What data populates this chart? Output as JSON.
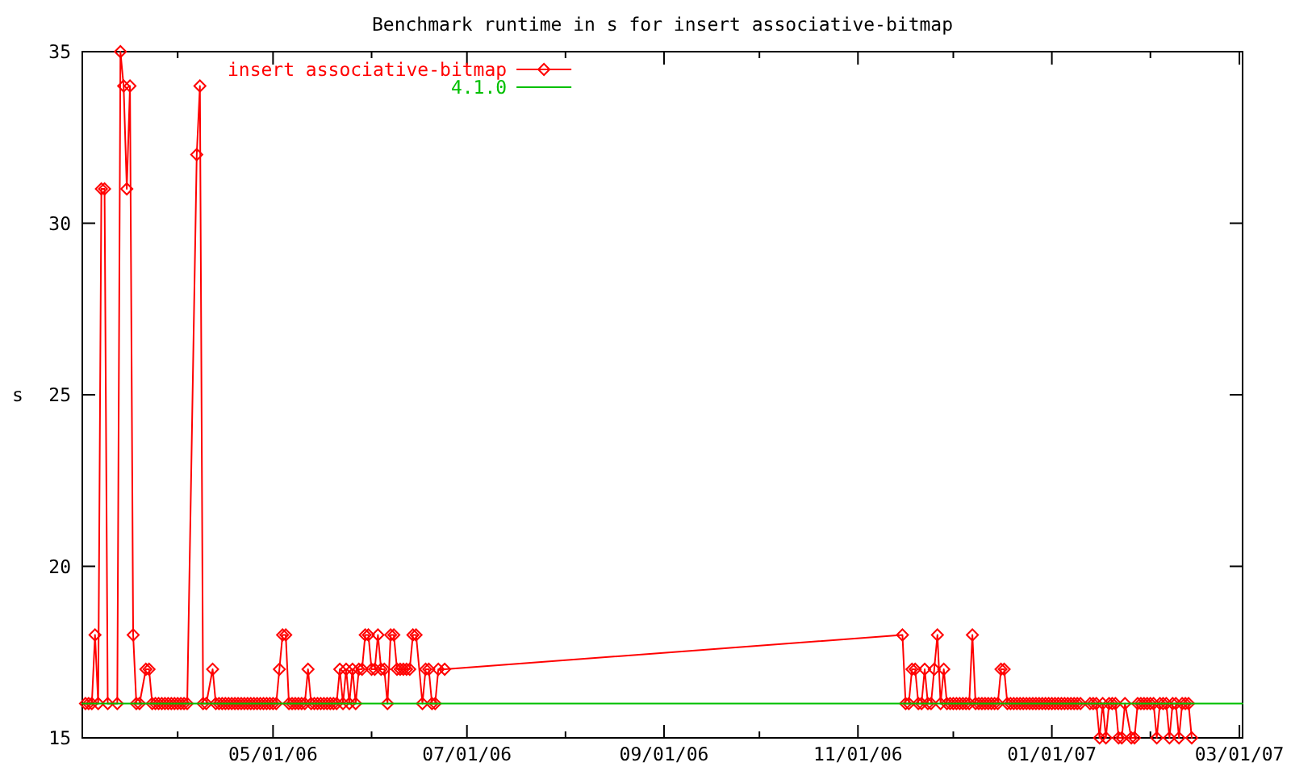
{
  "chart_data": {
    "type": "line",
    "title": "Benchmark runtime in s for insert associative-bitmap",
    "ylabel": "s",
    "xlim": [
      "2006-03-02",
      "2007-03-02"
    ],
    "xticks": [
      {
        "value": "2006-04-01",
        "label": null
      },
      {
        "value": "2006-05-01",
        "label": "05/01/06"
      },
      {
        "value": "2006-06-01",
        "label": null
      },
      {
        "value": "2006-07-01",
        "label": "07/01/06"
      },
      {
        "value": "2006-08-01",
        "label": null
      },
      {
        "value": "2006-09-01",
        "label": "09/01/06"
      },
      {
        "value": "2006-10-01",
        "label": null
      },
      {
        "value": "2006-11-01",
        "label": "11/01/06"
      },
      {
        "value": "2006-12-01",
        "label": null
      },
      {
        "value": "2007-01-01",
        "label": "01/01/07"
      },
      {
        "value": "2007-02-01",
        "label": null
      },
      {
        "value": "2007-03-01",
        "label": "03/01/07"
      }
    ],
    "ylim": [
      15,
      35
    ],
    "yticks": [
      15,
      20,
      25,
      30,
      35
    ],
    "legend": "top left",
    "series": [
      {
        "name": "insert associative-bitmap",
        "color": "#ff0000",
        "marker": "diamond",
        "x": [
          "2006-03-03",
          "2006-03-04",
          "2006-03-05",
          "2006-03-06",
          "2006-03-07",
          "2006-03-08",
          "2006-03-09",
          "2006-03-10",
          "2006-03-13",
          "2006-03-14",
          "2006-03-15",
          "2006-03-16",
          "2006-03-17",
          "2006-03-18",
          "2006-03-19",
          "2006-03-20",
          "2006-03-22",
          "2006-03-23",
          "2006-03-24",
          "2006-03-25",
          "2006-03-26",
          "2006-03-27",
          "2006-03-28",
          "2006-03-29",
          "2006-03-30",
          "2006-03-31",
          "2006-04-01",
          "2006-04-02",
          "2006-04-03",
          "2006-04-04",
          "2006-04-07",
          "2006-04-08",
          "2006-04-09",
          "2006-04-10",
          "2006-04-12",
          "2006-04-13",
          "2006-04-14",
          "2006-04-15",
          "2006-04-16",
          "2006-04-17",
          "2006-04-18",
          "2006-04-19",
          "2006-04-20",
          "2006-04-21",
          "2006-04-22",
          "2006-04-23",
          "2006-04-24",
          "2006-04-25",
          "2006-04-26",
          "2006-04-27",
          "2006-04-28",
          "2006-04-29",
          "2006-04-30",
          "2006-05-01",
          "2006-05-02",
          "2006-05-03",
          "2006-05-04",
          "2006-05-05",
          "2006-05-06",
          "2006-05-07",
          "2006-05-08",
          "2006-05-09",
          "2006-05-10",
          "2006-05-11",
          "2006-05-12",
          "2006-05-13",
          "2006-05-14",
          "2006-05-15",
          "2006-05-16",
          "2006-05-17",
          "2006-05-18",
          "2006-05-19",
          "2006-05-20",
          "2006-05-21",
          "2006-05-22",
          "2006-05-23",
          "2006-05-24",
          "2006-05-25",
          "2006-05-26",
          "2006-05-27",
          "2006-05-28",
          "2006-05-29",
          "2006-05-30",
          "2006-05-31",
          "2006-06-01",
          "2006-06-02",
          "2006-06-03",
          "2006-06-04",
          "2006-06-05",
          "2006-06-06",
          "2006-06-07",
          "2006-06-08",
          "2006-06-09",
          "2006-06-10",
          "2006-06-11",
          "2006-06-12",
          "2006-06-13",
          "2006-06-14",
          "2006-06-15",
          "2006-06-17",
          "2006-06-18",
          "2006-06-19",
          "2006-06-20",
          "2006-06-21",
          "2006-06-22",
          "2006-06-24",
          "2006-11-15",
          "2006-11-16",
          "2006-11-17",
          "2006-11-18",
          "2006-11-19",
          "2006-11-20",
          "2006-11-21",
          "2006-11-22",
          "2006-11-23",
          "2006-11-24",
          "2006-11-25",
          "2006-11-26",
          "2006-11-27",
          "2006-11-28",
          "2006-11-29",
          "2006-11-30",
          "2006-12-01",
          "2006-12-02",
          "2006-12-03",
          "2006-12-04",
          "2006-12-05",
          "2006-12-06",
          "2006-12-07",
          "2006-12-08",
          "2006-12-09",
          "2006-12-10",
          "2006-12-11",
          "2006-12-12",
          "2006-12-13",
          "2006-12-14",
          "2006-12-15",
          "2006-12-16",
          "2006-12-17",
          "2006-12-18",
          "2006-12-19",
          "2006-12-20",
          "2006-12-21",
          "2006-12-22",
          "2006-12-23",
          "2006-12-24",
          "2006-12-25",
          "2006-12-26",
          "2006-12-27",
          "2006-12-28",
          "2006-12-29",
          "2006-12-30",
          "2006-12-31",
          "2007-01-01",
          "2007-01-02",
          "2007-01-03",
          "2007-01-04",
          "2007-01-05",
          "2007-01-06",
          "2007-01-07",
          "2007-01-08",
          "2007-01-09",
          "2007-01-10",
          "2007-01-13",
          "2007-01-14",
          "2007-01-15",
          "2007-01-16",
          "2007-01-17",
          "2007-01-18",
          "2007-01-19",
          "2007-01-20",
          "2007-01-21",
          "2007-01-22",
          "2007-01-23",
          "2007-01-24",
          "2007-01-26",
          "2007-01-27",
          "2007-01-28",
          "2007-01-29",
          "2007-01-30",
          "2007-01-31",
          "2007-02-01",
          "2007-02-02",
          "2007-02-03",
          "2007-02-04",
          "2007-02-05",
          "2007-02-06",
          "2007-02-07",
          "2007-02-08",
          "2007-02-09",
          "2007-02-10",
          "2007-02-11",
          "2007-02-12",
          "2007-02-13",
          "2007-02-14"
        ],
        "values": [
          16,
          16,
          16,
          18,
          16,
          31,
          31,
          16,
          16,
          35,
          34,
          31,
          34,
          18,
          16,
          16,
          17,
          17,
          16,
          16,
          16,
          16,
          16,
          16,
          16,
          16,
          16,
          16,
          16,
          16,
          32,
          34,
          16,
          16,
          17,
          16,
          16,
          16,
          16,
          16,
          16,
          16,
          16,
          16,
          16,
          16,
          16,
          16,
          16,
          16,
          16,
          16,
          16,
          16,
          16,
          17,
          18,
          18,
          16,
          16,
          16,
          16,
          16,
          16,
          17,
          16,
          16,
          16,
          16,
          16,
          16,
          16,
          16,
          16,
          17,
          16,
          17,
          16,
          17,
          16,
          17,
          17,
          18,
          18,
          17,
          17,
          18,
          17,
          17,
          16,
          18,
          18,
          17,
          17,
          17,
          17,
          17,
          18,
          18,
          16,
          17,
          17,
          16,
          16,
          17,
          17,
          18,
          16,
          16,
          17,
          17,
          16,
          16,
          17,
          16,
          16,
          17,
          18,
          16,
          17,
          16,
          16,
          16,
          16,
          16,
          16,
          16,
          16,
          18,
          16,
          16,
          16,
          16,
          16,
          16,
          16,
          16,
          17,
          17,
          16,
          16,
          16,
          16,
          16,
          16,
          16,
          16,
          16,
          16,
          16,
          16,
          16,
          16,
          16,
          16,
          16,
          16,
          16,
          16,
          16,
          16,
          16,
          16,
          16,
          16,
          16,
          15,
          16,
          15,
          16,
          16,
          16,
          15,
          15,
          16,
          15,
          15,
          16,
          16,
          16,
          16,
          16,
          16,
          15,
          16,
          16,
          16,
          15,
          16,
          16,
          15,
          16,
          16,
          16,
          15
        ]
      },
      {
        "name": "4.1.0",
        "color": "#00c000",
        "marker": "none",
        "x": [
          "2006-03-02",
          "2007-03-02"
        ],
        "values": [
          16,
          16
        ]
      }
    ]
  }
}
